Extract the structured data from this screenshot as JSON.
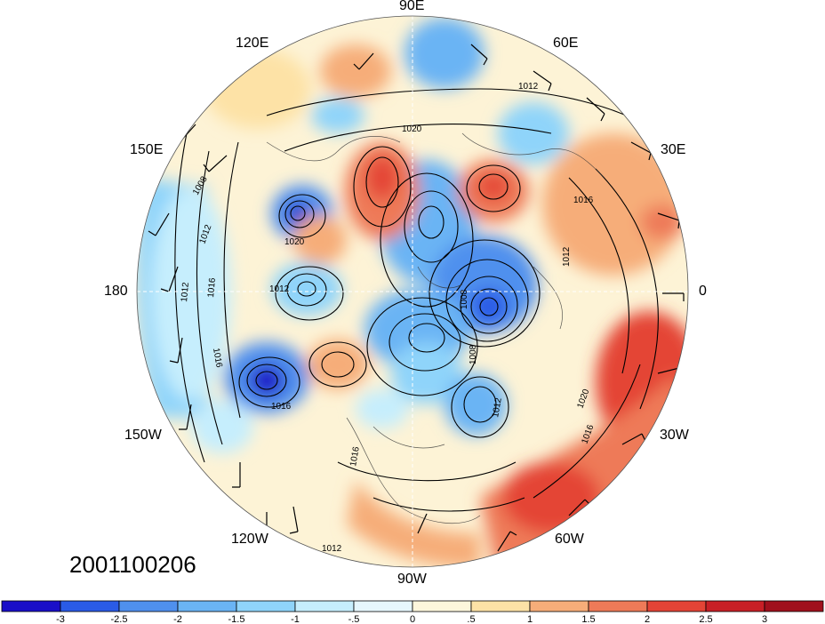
{
  "map": {
    "projection": "north-polar-stereographic",
    "date_label": "2001100206",
    "longitude_labels": [
      "90E",
      "60E",
      "30E",
      "0",
      "30W",
      "60W",
      "90W",
      "120W",
      "150W",
      "180",
      "150E",
      "120E"
    ],
    "contour_labels": [
      "1020",
      "1012",
      "1016",
      "1008",
      "1012",
      "1020",
      "1012",
      "1016",
      "1012",
      "1016",
      "1016",
      "1008",
      "1008",
      "1012",
      "1012",
      "1020",
      "1016",
      "1016",
      "1012"
    ],
    "colorbar": {
      "tick_labels": [
        "-3",
        "-2.5",
        "-2",
        "-1.5",
        "-1",
        "-.5",
        "0",
        ".5",
        "1",
        "1.5",
        "2",
        "2.5",
        "3"
      ],
      "colors": [
        "#1a0fc8",
        "#2a5be6",
        "#4f90ee",
        "#6ab4f4",
        "#8fd4fa",
        "#c6eefd",
        "#e6f7fd",
        "#fdf7dc",
        "#fde2a6",
        "#f6ad79",
        "#ee7a58",
        "#e44436",
        "#c81f26",
        "#a0101c"
      ]
    },
    "anomaly_color_scale": {
      "negative_strong": "#1a0fc8",
      "negative": "#4f90ee",
      "neutral": "#fdf7dc",
      "positive": "#ee7a58",
      "positive_strong": "#a0101c"
    }
  }
}
